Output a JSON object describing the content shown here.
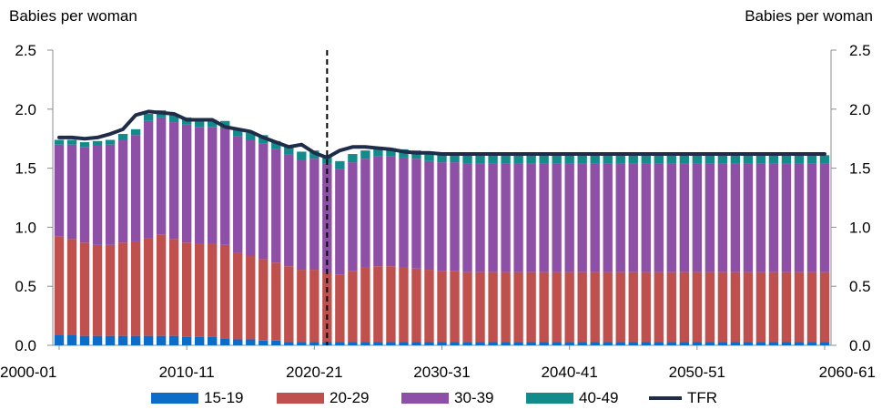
{
  "chart_data": {
    "type": "bar",
    "stacked": true,
    "y_unit_left": "Babies per woman",
    "y_unit_right": "Babies per woman",
    "ylim": [
      0,
      2.5
    ],
    "yticks": [
      "0.0",
      "0.5",
      "1.0",
      "1.5",
      "2.0",
      "2.5"
    ],
    "x_tick_labels": [
      "2000-01",
      "2010-11",
      "2020-21",
      "2030-31",
      "2040-41",
      "2050-51",
      "2060-61"
    ],
    "x_start_year": 2000,
    "x_end_year": 2060,
    "projection_start_year": 2021,
    "colors": {
      "15-19": "#0b6dc8",
      "20-29": "#c0504d",
      "30-39": "#8e4fa7",
      "40-49": "#138b8b",
      "TFR": "#1f2d4a"
    },
    "series": [
      {
        "name": "15-19",
        "values": [
          0.09,
          0.09,
          0.08,
          0.08,
          0.08,
          0.08,
          0.08,
          0.08,
          0.08,
          0.08,
          0.07,
          0.07,
          0.07,
          0.06,
          0.05,
          0.05,
          0.04,
          0.04,
          0.03,
          0.03,
          0.03,
          0.03,
          0.03,
          0.03,
          0.03,
          0.03,
          0.03,
          0.03,
          0.03,
          0.03,
          0.03,
          0.03,
          0.03,
          0.03,
          0.03,
          0.03,
          0.03,
          0.03,
          0.03,
          0.03,
          0.03,
          0.03,
          0.03,
          0.03,
          0.03,
          0.03,
          0.03,
          0.03,
          0.03,
          0.03,
          0.03,
          0.03,
          0.03,
          0.03,
          0.03,
          0.03,
          0.03,
          0.03,
          0.03,
          0.03,
          0.03
        ]
      },
      {
        "name": "20-29",
        "values": [
          0.83,
          0.81,
          0.79,
          0.77,
          0.77,
          0.79,
          0.8,
          0.83,
          0.86,
          0.82,
          0.8,
          0.79,
          0.79,
          0.79,
          0.73,
          0.71,
          0.69,
          0.66,
          0.64,
          0.61,
          0.61,
          0.58,
          0.57,
          0.6,
          0.63,
          0.64,
          0.64,
          0.63,
          0.62,
          0.61,
          0.6,
          0.6,
          0.59,
          0.59,
          0.59,
          0.59,
          0.59,
          0.59,
          0.59,
          0.59,
          0.59,
          0.59,
          0.59,
          0.59,
          0.59,
          0.59,
          0.59,
          0.59,
          0.59,
          0.59,
          0.59,
          0.59,
          0.59,
          0.59,
          0.59,
          0.59,
          0.59,
          0.59,
          0.59,
          0.59,
          0.59
        ]
      },
      {
        "name": "30-39",
        "values": [
          0.78,
          0.8,
          0.81,
          0.84,
          0.85,
          0.87,
          0.9,
          0.99,
          0.99,
          0.99,
          1.0,
          0.99,
          0.99,
          0.99,
          0.99,
          0.98,
          0.98,
          0.96,
          0.95,
          0.93,
          0.94,
          0.93,
          0.89,
          0.92,
          0.92,
          0.93,
          0.93,
          0.93,
          0.93,
          0.92,
          0.92,
          0.92,
          0.92,
          0.92,
          0.92,
          0.92,
          0.92,
          0.92,
          0.92,
          0.92,
          0.92,
          0.92,
          0.92,
          0.92,
          0.92,
          0.92,
          0.92,
          0.92,
          0.92,
          0.92,
          0.92,
          0.92,
          0.92,
          0.92,
          0.92,
          0.92,
          0.92,
          0.92,
          0.92,
          0.92,
          0.92
        ]
      },
      {
        "name": "40-49",
        "values": [
          0.04,
          0.04,
          0.04,
          0.04,
          0.04,
          0.05,
          0.05,
          0.06,
          0.06,
          0.06,
          0.06,
          0.06,
          0.06,
          0.06,
          0.06,
          0.06,
          0.07,
          0.07,
          0.07,
          0.07,
          0.07,
          0.07,
          0.07,
          0.07,
          0.07,
          0.07,
          0.07,
          0.07,
          0.07,
          0.07,
          0.07,
          0.07,
          0.07,
          0.07,
          0.07,
          0.07,
          0.07,
          0.07,
          0.07,
          0.07,
          0.07,
          0.07,
          0.07,
          0.07,
          0.07,
          0.07,
          0.07,
          0.07,
          0.07,
          0.07,
          0.07,
          0.07,
          0.07,
          0.07,
          0.07,
          0.07,
          0.07,
          0.07,
          0.07,
          0.07,
          0.07
        ]
      },
      {
        "name": "TFR",
        "type": "line",
        "values": [
          1.76,
          1.76,
          1.75,
          1.76,
          1.79,
          1.83,
          1.95,
          1.98,
          1.97,
          1.96,
          1.91,
          1.91,
          1.91,
          1.85,
          1.83,
          1.81,
          1.76,
          1.72,
          1.68,
          1.7,
          1.63,
          1.59,
          1.65,
          1.68,
          1.68,
          1.67,
          1.66,
          1.64,
          1.63,
          1.63,
          1.62,
          1.62,
          1.62,
          1.62,
          1.62,
          1.62,
          1.62,
          1.62,
          1.62,
          1.62,
          1.62,
          1.62,
          1.62,
          1.62,
          1.62,
          1.62,
          1.62,
          1.62,
          1.62,
          1.62,
          1.62,
          1.62,
          1.62,
          1.62,
          1.62,
          1.62,
          1.62,
          1.62,
          1.62,
          1.62,
          1.62
        ]
      }
    ],
    "legend": [
      "15-19",
      "20-29",
      "30-39",
      "40-49",
      "TFR"
    ],
    "legend_position": "bottom"
  }
}
